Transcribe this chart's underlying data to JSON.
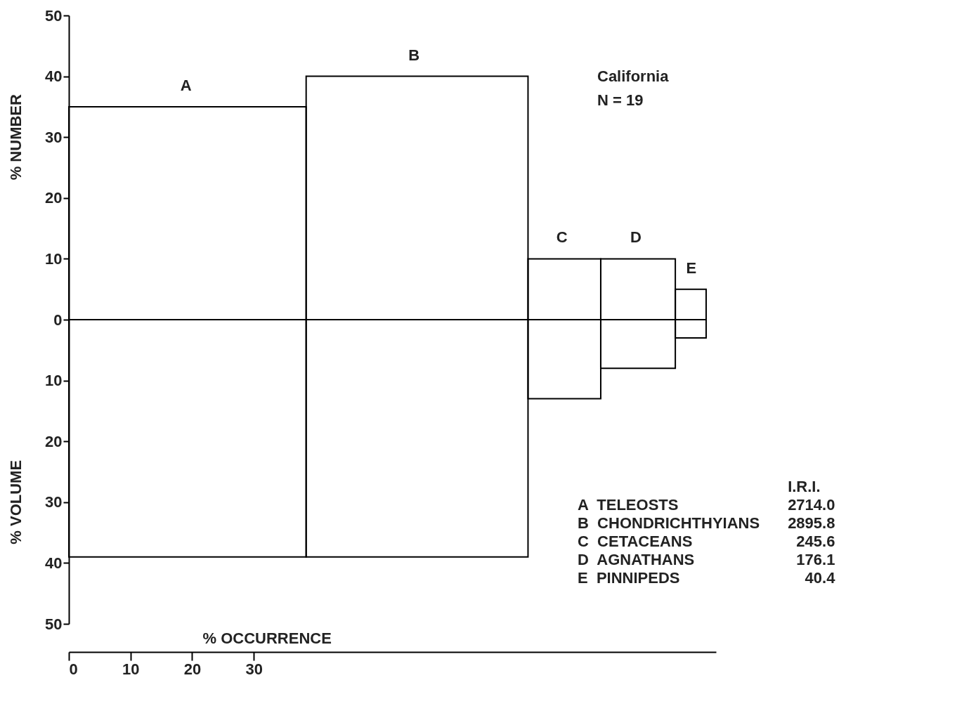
{
  "chart_data": {
    "type": "histogram",
    "bins": [
      0,
      38.5,
      74.5,
      86.3,
      98.4,
      103.4
    ],
    "series": [
      {
        "name": "% NUMBER",
        "color": "#000000",
        "values": [
          35,
          40,
          10,
          10,
          5
        ]
      },
      {
        "name": "% VOLUME",
        "color": "#000000",
        "values": [
          -39,
          -39,
          -13,
          -8,
          -3
        ]
      }
    ],
    "xlabel": "% OCCURRENCE",
    "xlim": [
      0,
      105
    ],
    "xticks": [
      0,
      10,
      20,
      30
    ],
    "ylim": [
      -50,
      50
    ],
    "yticks": [
      {
        "value": -50,
        "label": "50"
      },
      {
        "value": -40,
        "label": "40"
      },
      {
        "value": -30,
        "label": "30"
      },
      {
        "value": -20,
        "label": "20"
      },
      {
        "value": -10,
        "label": "10"
      },
      0,
      10,
      20,
      30,
      40,
      50
    ],
    "grid": false,
    "annotations": [
      "California",
      "N = 19",
      "I.R.I.",
      {
        "text": "A",
        "x": 19,
        "y": 35
      },
      {
        "text": "B",
        "x": 56,
        "y": 40
      },
      {
        "text": "C",
        "x": 80,
        "y": 10
      },
      {
        "text": "D",
        "x": 92,
        "y": 10
      },
      {
        "text": "E",
        "x": 101,
        "y": 5
      },
      "A  TELEOSTS",
      "2714.0",
      "B  CHONDRICHTHYIANS",
      "2895.8",
      "C  CETACEANS",
      "245.6",
      "D  AGNATHANS",
      "176.1",
      "E  PINNIPEDS",
      "40.4"
    ]
  }
}
